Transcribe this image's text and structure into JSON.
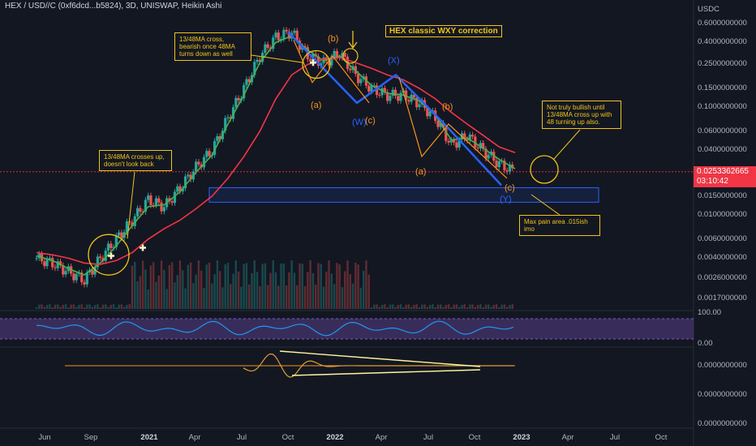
{
  "header": {
    "title": "HEX / USD//C (0xf6dcd...b5824), 3D, UNISWAP, Heikin Ashi"
  },
  "price_axis": {
    "currency": "USDC",
    "labels": [
      "0.6000000000",
      "0.4000000000",
      "0.2500000000",
      "0.1500000000",
      "0.1000000000",
      "0.0600000000",
      "0.0400000000",
      "0.0150000000",
      "0.0100000000",
      "0.0060000000",
      "0.0040000000",
      "0.0026000000",
      "0.0017000000"
    ],
    "last_price": "0.0253362665",
    "countdown": "03:10:42"
  },
  "rsi_axis": {
    "labels": [
      "100.00",
      "0.00"
    ]
  },
  "osc_axis": {
    "labels": [
      "0.0000000000",
      "0.0000000000",
      "0.0000000000"
    ]
  },
  "time_axis": {
    "labels": [
      "Jun",
      "Sep",
      "2021",
      "Apr",
      "Jul",
      "Oct",
      "2022",
      "Apr",
      "Jul",
      "Oct",
      "2023",
      "Apr",
      "Jul",
      "Oct"
    ]
  },
  "annotations": {
    "headline": "HEX classic WXY correction",
    "note_cross_up": "13/48MA crosses up, doesn't look back",
    "note_cross_bear": "13/48MA cross, bearish once 48MA turns down as well",
    "note_bullish": "Not truly bullish until 13/48MA cross up with 48 turning up also.",
    "note_pain": "Max pain area .015ish imo",
    "wave_b1": "(b)",
    "wave_a1": "(a)",
    "wave_W": "(W)",
    "wave_c1": "(c)",
    "wave_X": "(X)",
    "wave_b2": "(b)",
    "wave_a2": "(a)",
    "wave_c2": "(c)",
    "wave_Y": "(Y)"
  },
  "colors": {
    "background": "#131722",
    "bull": "#26a69a",
    "bear": "#ef5350",
    "ma13": "#4caf50",
    "ma48": "#f23645",
    "wave": "#2962ff",
    "annotation": "#f0c419",
    "rsi": "#2196f3",
    "rsi_band": "#7e57c2"
  },
  "chart_data": {
    "type": "candlestick",
    "style": "Heikin Ashi",
    "timeframe": "3D",
    "scale": "log",
    "x": [
      "2020-06",
      "2020-07",
      "2020-08",
      "2020-09",
      "2020-10",
      "2020-11",
      "2020-12",
      "2021-01",
      "2021-02",
      "2021-03",
      "2021-04",
      "2021-05",
      "2021-06",
      "2021-07",
      "2021-08",
      "2021-09",
      "2021-10",
      "2021-11",
      "2021-12",
      "2022-01",
      "2022-02",
      "2022-03",
      "2022-04",
      "2022-05",
      "2022-06",
      "2022-07",
      "2022-08",
      "2022-09",
      "2022-10",
      "2022-11",
      "2022-12"
    ],
    "close": [
      0.004,
      0.0036,
      0.003,
      0.0025,
      0.004,
      0.006,
      0.009,
      0.014,
      0.012,
      0.018,
      0.028,
      0.04,
      0.08,
      0.15,
      0.3,
      0.45,
      0.5,
      0.3,
      0.26,
      0.32,
      0.2,
      0.15,
      0.13,
      0.13,
      0.11,
      0.08,
      0.045,
      0.055,
      0.04,
      0.03,
      0.0253
    ],
    "series": [
      {
        "name": "13MA",
        "values": [
          0.0042,
          0.0038,
          0.0032,
          0.0028,
          0.0036,
          0.0052,
          0.008,
          0.012,
          0.0125,
          0.0165,
          0.025,
          0.036,
          0.07,
          0.13,
          0.26,
          0.4,
          0.46,
          0.34,
          0.27,
          0.3,
          0.22,
          0.16,
          0.135,
          0.13,
          0.115,
          0.085,
          0.05,
          0.052,
          0.042,
          0.033,
          0.027
        ]
      },
      {
        "name": "48MA",
        "values": [
          0.0045,
          0.0043,
          0.004,
          0.0036,
          0.0035,
          0.0038,
          0.0045,
          0.006,
          0.0075,
          0.009,
          0.0115,
          0.015,
          0.022,
          0.035,
          0.06,
          0.12,
          0.2,
          0.25,
          0.28,
          0.29,
          0.26,
          0.23,
          0.2,
          0.18,
          0.15,
          0.12,
          0.09,
          0.07,
          0.055,
          0.043,
          0.038
        ]
      }
    ],
    "ylim": [
      0.0015,
      0.7
    ]
  }
}
